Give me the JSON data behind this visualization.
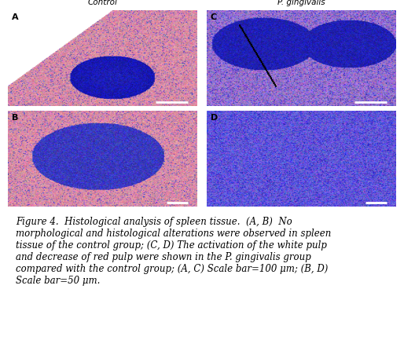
{
  "title_left": "Control",
  "title_right": "P. gingivalis",
  "panel_labels": [
    "A",
    "B",
    "C",
    "D"
  ],
  "caption": "Figure 4.  Histological analysis of spleen tissue.  (A, B)  No\nmorphological and histological alterations were observed in spleen\ntissue of the control group; (C, D) The activation of the white pulp\nand decrease of red pulp were shown in the P. gingivalis group\ncompared with the control group; (A, C) Scale bar=100 μm; (B, D)\nScale bar=50 μm.",
  "bg_color": "#ffffff",
  "panel_A_color_main": "#4444cc",
  "panel_A_color_accent": "#cc4488",
  "panel_bg_A": "#f8e8e8",
  "panel_bg_C": "#e8e8f8",
  "caption_fontsize": 8.5,
  "label_fontsize": 8,
  "header_fontsize": 7.5,
  "figure_width": 5.14,
  "figure_height": 4.38
}
